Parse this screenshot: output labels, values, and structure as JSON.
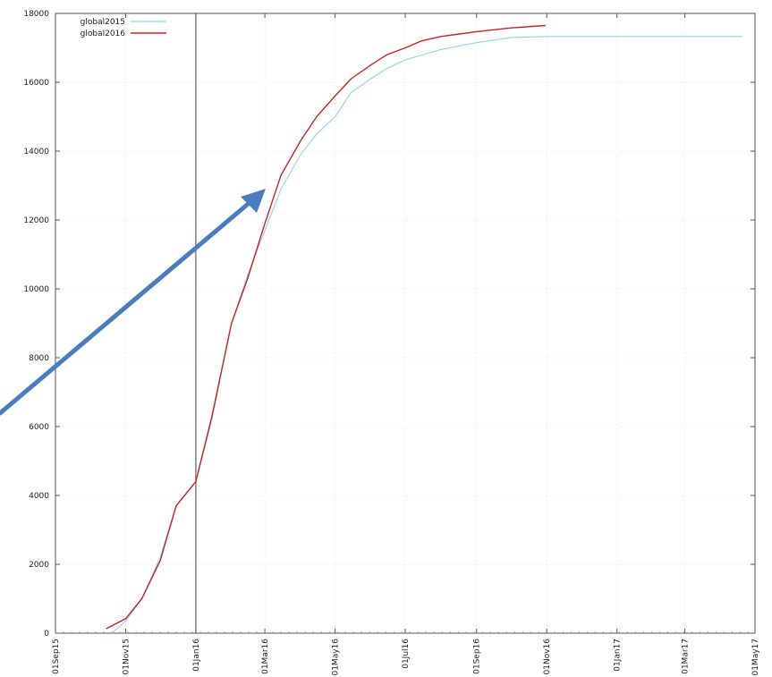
{
  "chart_data": {
    "type": "line",
    "title": "",
    "xlabel": "",
    "ylabel": "",
    "x_axis": "date",
    "xlim": [
      "2015-09-01",
      "2017-05-01"
    ],
    "ylim": [
      0,
      18000
    ],
    "yticks": [
      0,
      2000,
      4000,
      6000,
      8000,
      10000,
      12000,
      14000,
      16000,
      18000
    ],
    "xticks": [
      {
        "date": "2015-09-01",
        "label": "01Sep15"
      },
      {
        "date": "2015-11-01",
        "label": "01Nov15"
      },
      {
        "date": "2016-01-01",
        "label": "01Jan16"
      },
      {
        "date": "2016-03-01",
        "label": "01Mar16"
      },
      {
        "date": "2016-05-01",
        "label": "01May16"
      },
      {
        "date": "2016-07-01",
        "label": "01Jul16"
      },
      {
        "date": "2016-09-01",
        "label": "01Sep16"
      },
      {
        "date": "2016-11-01",
        "label": "01Nov16"
      },
      {
        "date": "2017-01-01",
        "label": "01Jan17"
      },
      {
        "date": "2017-03-01",
        "label": "01Mar17"
      },
      {
        "date": "2017-05-01",
        "label": "01May17"
      }
    ],
    "grid": true,
    "legend_position": "top-left",
    "reference_line": {
      "date": "2016-01-01"
    },
    "series": [
      {
        "name": "global2015",
        "color": "#8fd3ee",
        "points": [
          [
            "2015-10-20",
            0
          ],
          [
            "2015-11-01",
            350
          ],
          [
            "2015-11-15",
            1000
          ],
          [
            "2015-12-01",
            2200
          ],
          [
            "2015-12-15",
            3700
          ],
          [
            "2016-01-01",
            4400
          ],
          [
            "2016-01-15",
            6200
          ],
          [
            "2016-02-01",
            9000
          ],
          [
            "2016-02-15",
            10400
          ],
          [
            "2016-03-01",
            11700
          ],
          [
            "2016-03-15",
            12900
          ],
          [
            "2016-04-01",
            13900
          ],
          [
            "2016-04-15",
            14500
          ],
          [
            "2016-05-01",
            15000
          ],
          [
            "2016-05-15",
            15700
          ],
          [
            "2016-06-01",
            16100
          ],
          [
            "2016-06-15",
            16400
          ],
          [
            "2016-07-01",
            16650
          ],
          [
            "2016-08-01",
            16950
          ],
          [
            "2016-09-01",
            17150
          ],
          [
            "2016-10-01",
            17300
          ],
          [
            "2016-11-01",
            17330
          ],
          [
            "2017-04-20",
            17330
          ]
        ]
      },
      {
        "name": "global2016",
        "color": "#cc2222",
        "points": [
          [
            "2015-10-15",
            130
          ],
          [
            "2015-11-01",
            420
          ],
          [
            "2015-11-15",
            1000
          ],
          [
            "2015-12-01",
            2100
          ],
          [
            "2015-12-15",
            3700
          ],
          [
            "2016-01-01",
            4400
          ],
          [
            "2016-01-15",
            6300
          ],
          [
            "2016-02-01",
            9000
          ],
          [
            "2016-02-15",
            10300
          ],
          [
            "2016-03-01",
            11900
          ],
          [
            "2016-03-15",
            13300
          ],
          [
            "2016-04-01",
            14300
          ],
          [
            "2016-04-15",
            15000
          ],
          [
            "2016-05-01",
            15600
          ],
          [
            "2016-05-15",
            16100
          ],
          [
            "2016-06-01",
            16500
          ],
          [
            "2016-06-15",
            16800
          ],
          [
            "2016-07-01",
            17000
          ],
          [
            "2016-07-15",
            17200
          ],
          [
            "2016-08-01",
            17330
          ],
          [
            "2016-09-01",
            17470
          ],
          [
            "2016-10-01",
            17580
          ],
          [
            "2016-10-31",
            17650
          ]
        ]
      }
    ]
  },
  "annotation": {
    "color": "#4a7dbf"
  }
}
